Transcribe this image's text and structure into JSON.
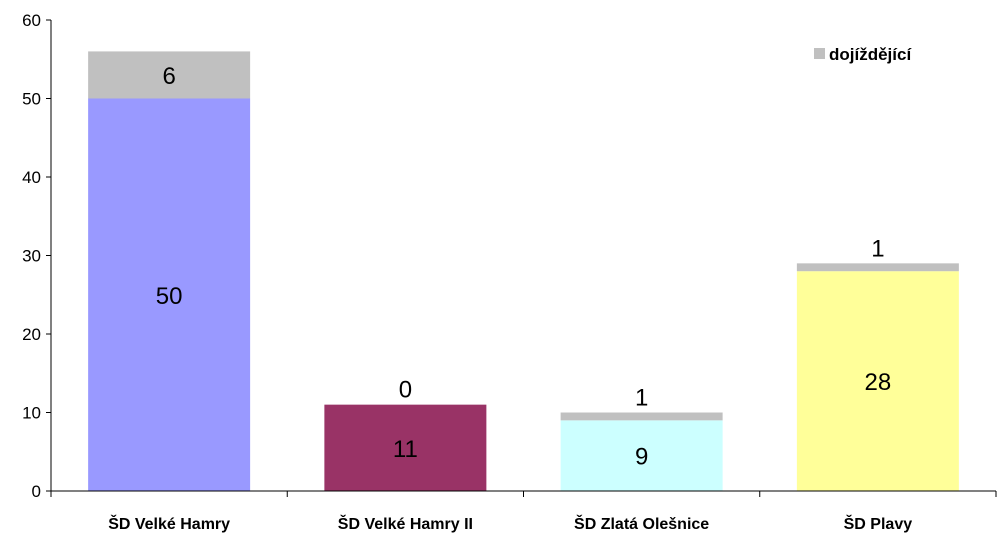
{
  "chart_data": {
    "type": "bar",
    "stacked": true,
    "categories": [
      "ŠD Velké Hamry",
      "ŠD Velké Hamry II",
      "ŠD Zlatá Olešnice",
      "ŠD Plavy"
    ],
    "base_values": [
      50,
      11,
      9,
      28
    ],
    "base_colors": [
      "#9999ff",
      "#993366",
      "#ccffff",
      "#ffff99"
    ],
    "series": [
      {
        "name": "dojíždějící",
        "values": [
          6,
          0,
          1,
          1
        ],
        "color": "#c0c0c0"
      }
    ],
    "ylim": [
      0,
      60
    ],
    "yticks": [
      "0",
      "10",
      "20",
      "30",
      "40",
      "50",
      "60"
    ],
    "legend_position": "top-right",
    "grid": false
  }
}
